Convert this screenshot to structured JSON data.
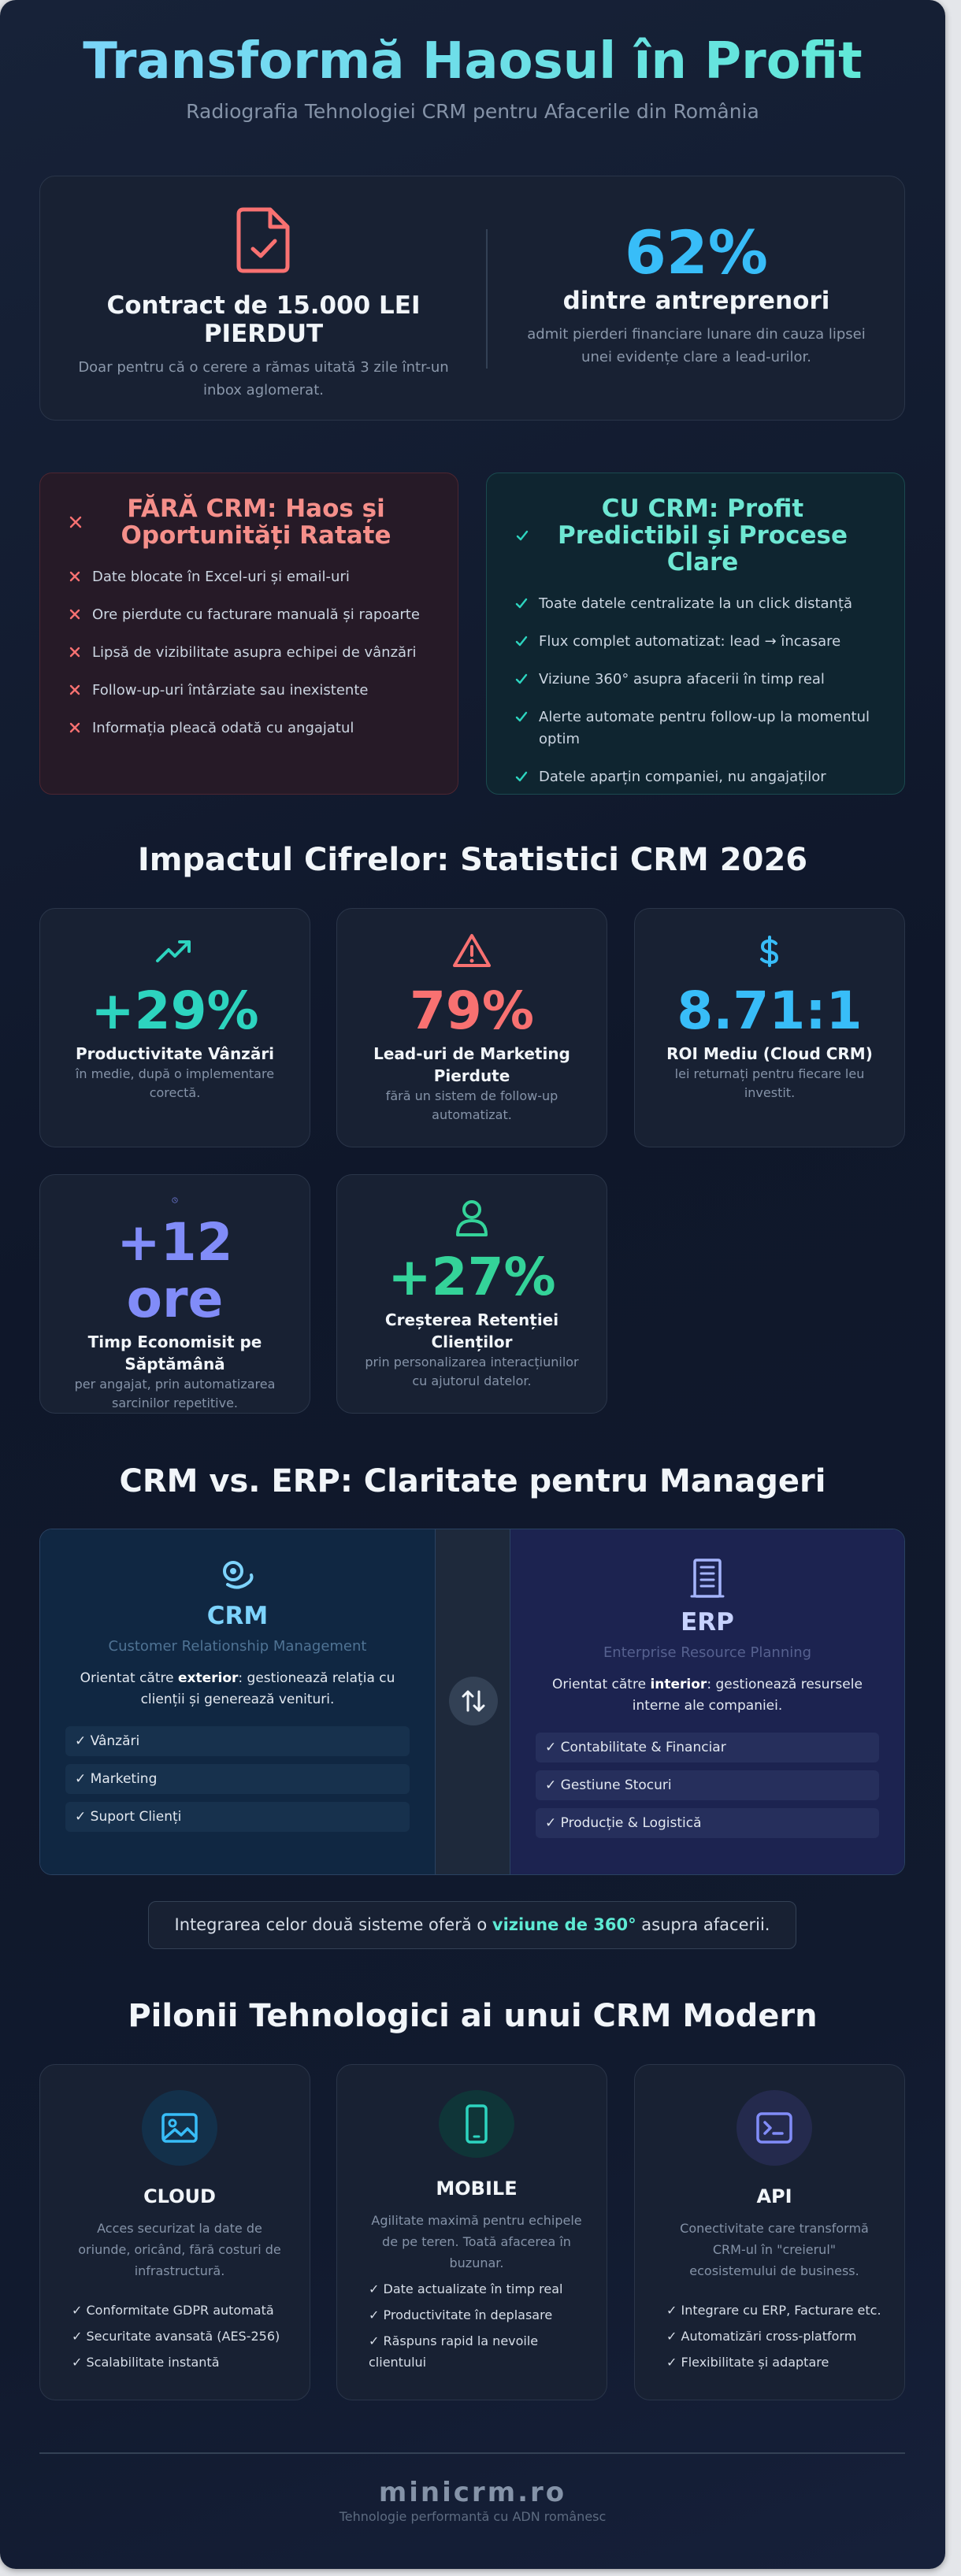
{
  "header": {
    "title": "Transformă Haosul în Profit",
    "subtitle": "Radiografia Tehnologiei CRM pentru Afacerile din România"
  },
  "hero": {
    "left": {
      "title": "Contract de 15.000 LEI PIERDUT",
      "text": "Doar pentru că o cerere a rămas uitată 3 zile într-un inbox aglomerat."
    },
    "right": {
      "stat": "62%",
      "title": "dintre antreprenori",
      "text": "admit pierderi financiare lunare din cauza lipsei unei evidențe clare a lead-urilor."
    }
  },
  "without_crm": {
    "title": "FĂRĂ CRM: Haos și Oportunități Ratate",
    "items": [
      "Date blocate în Excel-uri și email-uri",
      "Ore pierdute cu facturare manuală și rapoarte",
      "Lipsă de vizibilitate asupra echipei de vânzări",
      "Follow-up-uri întârziate sau inexistente",
      "Informația pleacă odată cu angajatul"
    ]
  },
  "with_crm": {
    "title": "CU CRM: Profit Predictibil și Procese Clare",
    "items": [
      "Toate datele centralizate la un click distanță",
      "Flux complet automatizat: lead → încasare",
      "Viziune 360° asupra afacerii în timp real",
      "Alerte automate pentru follow-up la momentul optim",
      "Datele aparțin companiei, nu angajaților"
    ]
  },
  "stats": {
    "heading": "Impactul Cifrelor: Statistici CRM 2026",
    "cards": [
      {
        "value": "+29%",
        "label": "Productivitate Vânzări",
        "note": "în medie, după o implementare corectă.",
        "color": "#2dd4bf"
      },
      {
        "value": "79%",
        "label": "Lead-uri de Marketing Pierdute",
        "note": "fără un sistem de follow-up automatizat.",
        "color": "#f87171"
      },
      {
        "value": "8.71:1",
        "label": "ROI Mediu (Cloud CRM)",
        "note": "lei returnați pentru fiecare leu investit.",
        "color": "#38bdf8"
      },
      {
        "value": "+12 ore",
        "label": "Timp Economisit pe Săptămână",
        "note": "per angajat, prin automatizarea sarcinilor repetitive.",
        "color": "#818cf8"
      },
      {
        "value": "+27%",
        "label": "Creșterea Retenției Clienților",
        "note": "prin personalizarea interacțiunilor cu ajutorul datelor.",
        "color": "#34d399"
      }
    ]
  },
  "comparison": {
    "heading": "CRM vs. ERP: Claritate pentru Manageri",
    "crm": {
      "name": "CRM",
      "full": "Customer Relationship Management",
      "desc": [
        "Orientat către ",
        "exterior",
        ": gestionează relația cu clienții și generează venituri."
      ],
      "items": [
        "✓ Vânzări",
        "✓ Marketing",
        "✓ Suport Clienți"
      ]
    },
    "erp": {
      "name": "ERP",
      "full": "Enterprise Resource Planning",
      "desc": [
        "Orientat către ",
        "interior",
        ": gestionează resursele interne ale companiei."
      ],
      "items": [
        "✓ Contabilitate & Financiar",
        "✓ Gestiune Stocuri",
        "✓ Producție & Logistică"
      ]
    }
  },
  "integration": [
    "Integrarea celor două sisteme oferă o ",
    "viziune de 360°",
    " asupra afacerii."
  ],
  "pillars": {
    "heading": "Pilonii Tehnologici ai unui CRM Modern",
    "cards": [
      {
        "name": "CLOUD",
        "text": "Acces securizat la date de oriunde, oricând, fără costuri de infrastructură.",
        "items": [
          "✓ Conformitate GDPR automată",
          "✓ Securitate avansată (AES-256)",
          "✓ Scalabilitate instantă"
        ]
      },
      {
        "name": "MOBILE",
        "text": "Agilitate maximă pentru echipele de pe teren. Toată afacerea în buzunar.",
        "items": [
          "✓ Date actualizate în timp real",
          "✓ Productivitate în deplasare",
          "✓ Răspuns rapid la nevoile clientului"
        ]
      },
      {
        "name": "API",
        "text": "Conectivitate care transformă CRM-ul în \"creierul\" ecosistemului de business.",
        "items": [
          "✓ Integrare cu ERP, Facturare etc.",
          "✓ Automatizări cross-platform",
          "✓ Flexibilitate și adaptare"
        ]
      }
    ]
  },
  "footer": {
    "brand": "minicrm.ro",
    "tagline": "Tehnologie performantă cu ADN românesc"
  }
}
